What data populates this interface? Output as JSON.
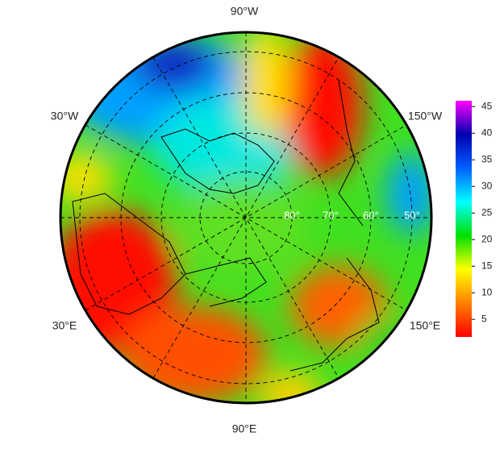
{
  "map": {
    "longitude_labels": [
      "90°W",
      "30°W",
      "150°W",
      "30°E",
      "150°E",
      "90°E"
    ],
    "latitude_labels": [
      "80°",
      "70°",
      "60°",
      "50°"
    ],
    "colorbar": {
      "range": [
        1.7,
        46.1
      ],
      "ticks": [
        5,
        10,
        15,
        20,
        25,
        30,
        35,
        40,
        45
      ],
      "colors": [
        "#ff0000",
        "#ff8000",
        "#ffff00",
        "#00e000",
        "#00ffff",
        "#0060ff",
        "#0000b0",
        "#ff00ff"
      ]
    }
  }
}
